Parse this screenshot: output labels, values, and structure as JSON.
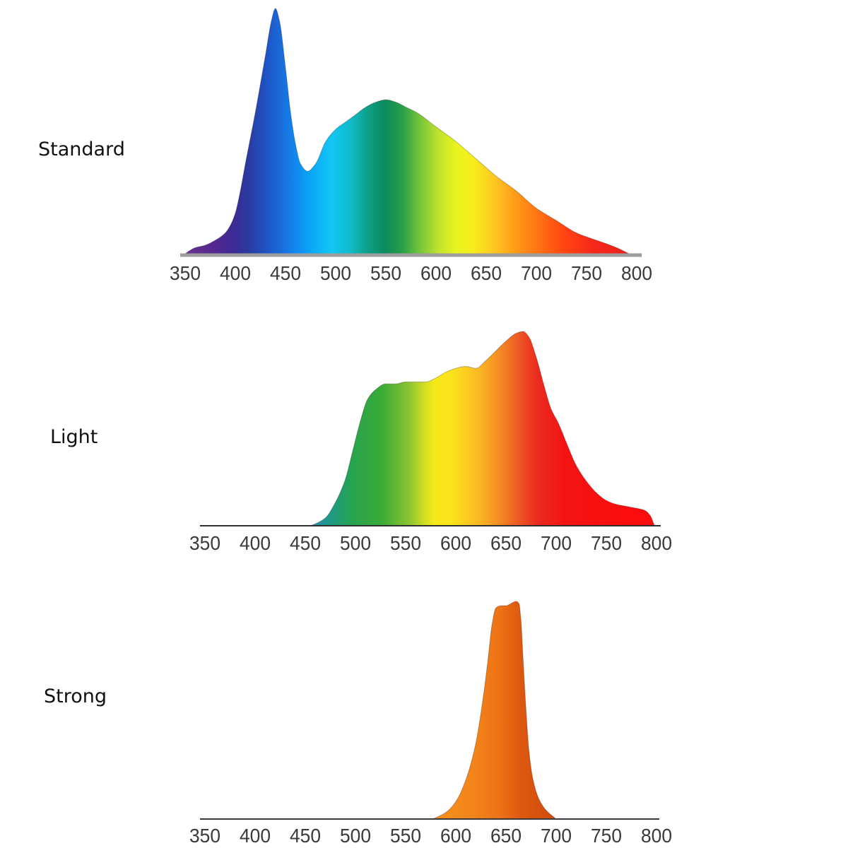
{
  "chart_data": [
    {
      "type": "area",
      "title": "Standard",
      "xlabel": "",
      "ylabel": "",
      "xlim": [
        350,
        800
      ],
      "ylim": [
        0,
        1
      ],
      "x_ticks": [
        350,
        400,
        450,
        500,
        550,
        600,
        650,
        700,
        750,
        800
      ],
      "grid": false,
      "legend": false,
      "series": [
        {
          "x": [
            348,
            360,
            370,
            380,
            390,
            395,
            400,
            405,
            410,
            420,
            430,
            436,
            440,
            444,
            450,
            455,
            460,
            465,
            472,
            480,
            490,
            500,
            510,
            520,
            530,
            540,
            550,
            560,
            570,
            580,
            600,
            620,
            640,
            660,
            680,
            700,
            720,
            740,
            760,
            780,
            795
          ],
          "y": [
            0.0,
            0.03,
            0.04,
            0.06,
            0.09,
            0.12,
            0.17,
            0.26,
            0.37,
            0.58,
            0.81,
            0.95,
            1.0,
            0.95,
            0.76,
            0.58,
            0.45,
            0.37,
            0.34,
            0.37,
            0.46,
            0.51,
            0.54,
            0.57,
            0.6,
            0.62,
            0.63,
            0.62,
            0.6,
            0.58,
            0.52,
            0.46,
            0.39,
            0.32,
            0.26,
            0.19,
            0.14,
            0.09,
            0.06,
            0.03,
            0.0
          ]
        }
      ],
      "colors": [
        {
          "nm": 348,
          "color": "#6b2f8f"
        },
        {
          "nm": 378,
          "color": "#55298f"
        },
        {
          "nm": 398,
          "color": "#3d2a95"
        },
        {
          "nm": 412,
          "color": "#2b3a9f"
        },
        {
          "nm": 430,
          "color": "#1f52c2"
        },
        {
          "nm": 444,
          "color": "#1a69d7"
        },
        {
          "nm": 458,
          "color": "#1284ee"
        },
        {
          "nm": 475,
          "color": "#0aa7f6"
        },
        {
          "nm": 496,
          "color": "#12c7f4"
        },
        {
          "nm": 514,
          "color": "#10bcca"
        },
        {
          "nm": 532,
          "color": "#0e9f88"
        },
        {
          "nm": 549,
          "color": "#0b8a5c"
        },
        {
          "nm": 567,
          "color": "#2aa046"
        },
        {
          "nm": 584,
          "color": "#76c53a"
        },
        {
          "nm": 602,
          "color": "#bfe22c"
        },
        {
          "nm": 620,
          "color": "#e9f41e"
        },
        {
          "nm": 637,
          "color": "#f6ed1c"
        },
        {
          "nm": 658,
          "color": "#ffc720"
        },
        {
          "nm": 680,
          "color": "#ff9a18"
        },
        {
          "nm": 701,
          "color": "#ff7414"
        },
        {
          "nm": 729,
          "color": "#ff4312"
        },
        {
          "nm": 757,
          "color": "#f7271a"
        },
        {
          "nm": 799,
          "color": "#e62018"
        }
      ]
    },
    {
      "type": "area",
      "title": "Light",
      "xlabel": "",
      "ylabel": "",
      "xlim": [
        350,
        800
      ],
      "ylim": [
        0,
        1
      ],
      "x_ticks": [
        350,
        400,
        450,
        500,
        550,
        600,
        650,
        700,
        750,
        800
      ],
      "grid": false,
      "legend": false,
      "series": [
        {
          "x": [
            455,
            460,
            470,
            480,
            490,
            497,
            505,
            512,
            520,
            530,
            540,
            550,
            560,
            570,
            580,
            590,
            600,
            610,
            620,
            630,
            640,
            650,
            660,
            667,
            673,
            680,
            688,
            695,
            702,
            710,
            720,
            730,
            740,
            750,
            760,
            770,
            780,
            788,
            794,
            798
          ],
          "y": [
            0.0,
            0.01,
            0.04,
            0.12,
            0.24,
            0.38,
            0.54,
            0.65,
            0.7,
            0.73,
            0.73,
            0.74,
            0.74,
            0.74,
            0.76,
            0.79,
            0.81,
            0.82,
            0.81,
            0.85,
            0.9,
            0.95,
            0.99,
            1.0,
            0.97,
            0.87,
            0.72,
            0.6,
            0.53,
            0.43,
            0.31,
            0.23,
            0.17,
            0.13,
            0.11,
            0.1,
            0.09,
            0.08,
            0.05,
            0.0
          ]
        }
      ],
      "colors": [
        {
          "nm": 459,
          "color": "#2a8fa8"
        },
        {
          "nm": 477,
          "color": "#1e9b80"
        },
        {
          "nm": 498,
          "color": "#27a44c"
        },
        {
          "nm": 526,
          "color": "#3aaa36"
        },
        {
          "nm": 554,
          "color": "#8cc532"
        },
        {
          "nm": 568,
          "color": "#cfdd22"
        },
        {
          "nm": 579,
          "color": "#f6e91a"
        },
        {
          "nm": 596,
          "color": "#fde31d"
        },
        {
          "nm": 625,
          "color": "#fab424"
        },
        {
          "nm": 646,
          "color": "#f48522"
        },
        {
          "nm": 663,
          "color": "#ed5724"
        },
        {
          "nm": 681,
          "color": "#eb2b20"
        },
        {
          "nm": 709,
          "color": "#f41313"
        },
        {
          "nm": 794,
          "color": "#ff0b0b"
        }
      ]
    },
    {
      "type": "area",
      "title": "Strong",
      "xlabel": "",
      "ylabel": "",
      "xlim": [
        350,
        800
      ],
      "ylim": [
        0,
        1
      ],
      "x_ticks": [
        350,
        400,
        450,
        500,
        550,
        600,
        650,
        700,
        750,
        800
      ],
      "grid": false,
      "legend": false,
      "series": [
        {
          "x": [
            577,
            590,
            600,
            610,
            620,
            627,
            632,
            636,
            640,
            645,
            650,
            655,
            660,
            663,
            665,
            667,
            670,
            673,
            677,
            683,
            690,
            700
          ],
          "y": [
            0.0,
            0.03,
            0.08,
            0.18,
            0.35,
            0.55,
            0.73,
            0.89,
            0.97,
            0.98,
            0.98,
            0.99,
            1.0,
            0.99,
            0.91,
            0.74,
            0.5,
            0.31,
            0.18,
            0.09,
            0.04,
            0.0
          ]
        }
      ],
      "colors": [
        {
          "nm": 577,
          "color": "#f6921e"
        },
        {
          "nm": 620,
          "color": "#f38319"
        },
        {
          "nm": 645,
          "color": "#ec7015"
        },
        {
          "nm": 665,
          "color": "#dd580f"
        },
        {
          "nm": 700,
          "color": "#d24a0c"
        }
      ]
    }
  ]
}
